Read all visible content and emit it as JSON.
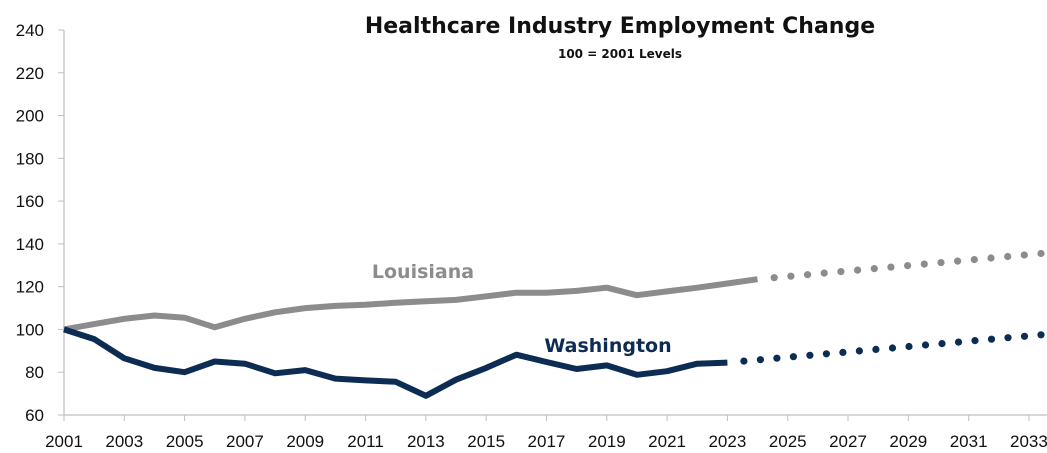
{
  "chart_data": {
    "type": "line",
    "title": "Healthcare Industry Employment Change",
    "subtitle": "100 = 2001 Levels",
    "xlabel": "",
    "ylabel": "",
    "xlim": [
      2001,
      2033.4
    ],
    "ylim": [
      60,
      240
    ],
    "yticks": [
      60,
      80,
      100,
      120,
      140,
      160,
      180,
      200,
      220,
      240
    ],
    "xticks": [
      2001,
      2003,
      2005,
      2007,
      2009,
      2011,
      2013,
      2015,
      2017,
      2019,
      2021,
      2023,
      2025,
      2027,
      2029,
      2031,
      2033
    ],
    "grid": false,
    "series": [
      {
        "name": "Louisiana",
        "color": "#8c8c8c",
        "actual": {
          "x": [
            2001,
            2002,
            2003,
            2004,
            2005,
            2006,
            2007,
            2008,
            2009,
            2010,
            2011,
            2012,
            2013,
            2014,
            2015,
            2016,
            2017,
            2018,
            2019,
            2020,
            2021,
            2022,
            2023,
            2024
          ],
          "y": [
            100,
            102.5,
            105,
            106.5,
            105.5,
            101,
            105,
            108,
            110,
            111,
            111.5,
            112.5,
            113.2,
            113.8,
            115.5,
            117.2,
            117.2,
            118,
            119.5,
            116,
            117.8,
            119.5,
            121.5,
            123.5
          ]
        },
        "projected": {
          "x": [
            2024,
            2033.4
          ],
          "y": [
            123.5,
            135.5
          ]
        }
      },
      {
        "name": "Washington",
        "color": "#0c2c53",
        "actual": {
          "x": [
            2001,
            2002,
            2003,
            2004,
            2005,
            2006,
            2007,
            2008,
            2009,
            2010,
            2011,
            2012,
            2013,
            2014,
            2015,
            2016,
            2017,
            2018,
            2019,
            2020,
            2021,
            2022,
            2023
          ],
          "y": [
            100,
            95.5,
            86.5,
            82,
            80,
            85,
            84,
            79.5,
            81,
            77,
            76.2,
            75.5,
            69,
            76.5,
            82,
            88.2,
            84.8,
            81.5,
            83.2,
            78.8,
            80.5,
            84,
            84.5
          ]
        },
        "projected": {
          "x": [
            2023,
            2033.4
          ],
          "y": [
            84.5,
            97.5
          ]
        }
      }
    ]
  }
}
